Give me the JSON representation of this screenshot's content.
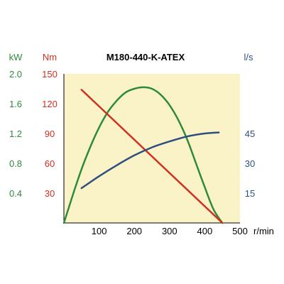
{
  "chart_data": {
    "type": "line",
    "title": "M180-440-K-ATEX",
    "grid": false,
    "x": {
      "unit": "r/min",
      "range": [
        0,
        500
      ],
      "ticks": [
        100,
        200,
        300,
        400,
        500
      ]
    },
    "axes": {
      "kw": {
        "unit": "kW",
        "range": [
          0,
          2.0
        ],
        "ticks": [
          "0.4",
          "0.8",
          "1.2",
          "1.6",
          "2.0"
        ],
        "color": "#2e8b3c"
      },
      "nm": {
        "unit": "Nm",
        "range": [
          0,
          150
        ],
        "ticks": [
          30,
          60,
          90,
          120,
          150
        ],
        "color": "#d03020"
      },
      "ls": {
        "unit": "l/s",
        "range": [
          0,
          75
        ],
        "ticks": [
          15,
          30,
          45
        ],
        "color": "#2f4f7f"
      }
    },
    "series": [
      {
        "axis": "kw",
        "color": "#2e8b3c",
        "points": [
          [
            0,
            0
          ],
          [
            25,
            0.37
          ],
          [
            50,
            0.72
          ],
          [
            75,
            1.02
          ],
          [
            100,
            1.28
          ],
          [
            125,
            1.49
          ],
          [
            150,
            1.64
          ],
          [
            175,
            1.75
          ],
          [
            200,
            1.8
          ],
          [
            225,
            1.82
          ],
          [
            250,
            1.8
          ],
          [
            275,
            1.72
          ],
          [
            300,
            1.58
          ],
          [
            325,
            1.38
          ],
          [
            350,
            1.12
          ],
          [
            375,
            0.8
          ],
          [
            400,
            0.48
          ],
          [
            425,
            0.18
          ],
          [
            450,
            0
          ]
        ]
      },
      {
        "axis": "nm",
        "color": "#d03020",
        "points": [
          [
            50,
            134
          ],
          [
            450,
            0
          ]
        ]
      },
      {
        "axis": "ls",
        "color": "#2f4f7f",
        "points": [
          [
            50,
            17.5
          ],
          [
            100,
            23.5
          ],
          [
            150,
            29
          ],
          [
            200,
            34
          ],
          [
            250,
            38
          ],
          [
            300,
            41
          ],
          [
            350,
            43.5
          ],
          [
            400,
            45
          ],
          [
            440,
            45.5
          ]
        ]
      }
    ]
  }
}
